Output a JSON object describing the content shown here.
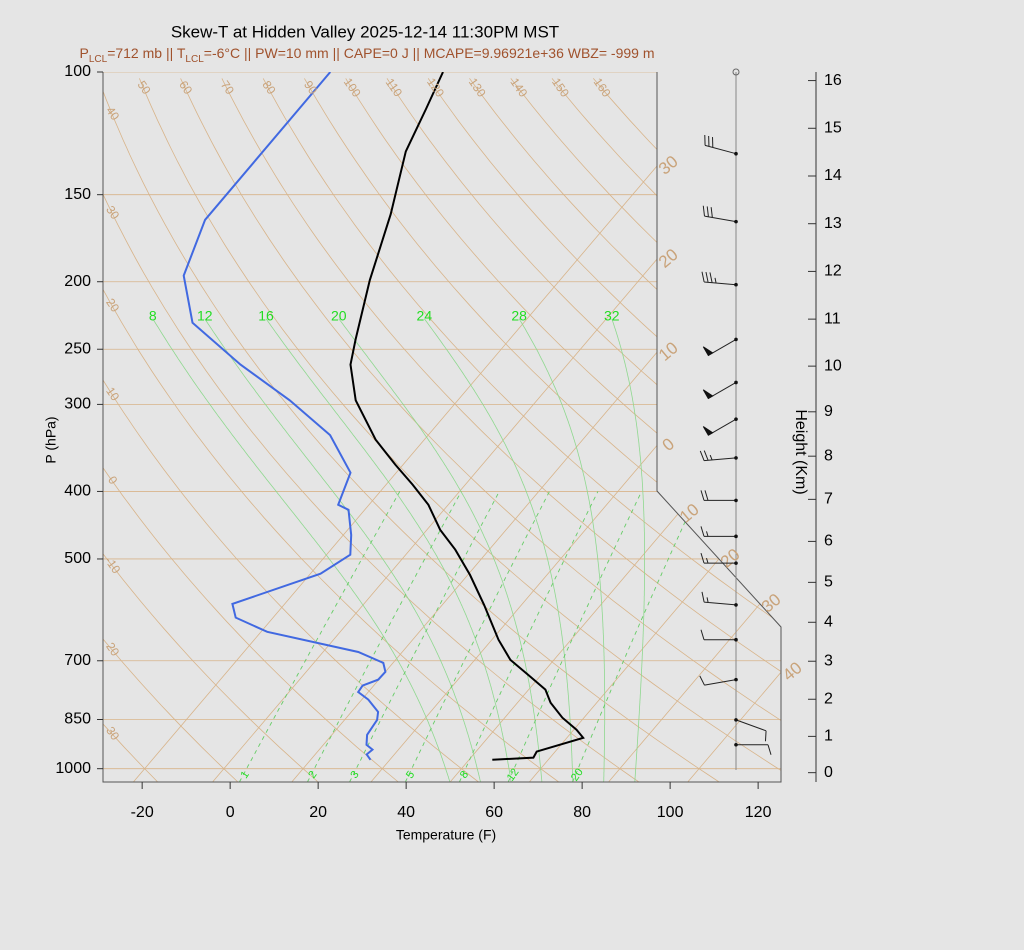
{
  "chart_data": {
    "type": "skewt",
    "title": "Skew-T at Hidden Valley 2025-12-14 11:30PM MST",
    "subtitle": [
      {
        "text": "P"
      },
      {
        "text": "LCL",
        "sub": true
      },
      {
        "text": "=712 mb || T"
      },
      {
        "text": "LCL",
        "sub": true
      },
      {
        "text": "=-6°C || PW=10 mm || CAPE=0 J || MCAPE=9.96921e+36 WBZ= -999 m"
      }
    ],
    "xlabel": "Temperature (F)",
    "ylabel": "P (hPa)",
    "y2label": "Height (Km)",
    "xlim": [
      -28.9,
      125.2
    ],
    "xticks": [
      -20,
      0,
      20,
      40,
      60,
      80,
      100,
      120
    ],
    "ylim": [
      1045,
      100
    ],
    "ylog": true,
    "yticks": [
      100,
      150,
      200,
      250,
      300,
      400,
      500,
      700,
      850,
      1000
    ],
    "y2ticks": [
      0,
      1,
      2,
      3,
      4,
      5,
      6,
      7,
      8,
      9,
      10,
      11,
      12,
      13,
      14,
      15,
      16
    ],
    "series": [
      {
        "color": "#000000",
        "pressure": [
          971,
          964,
          945,
          903,
          879,
          845,
          804,
          770,
          738,
          698,
          653,
          582,
          527,
          485,
          454,
          418,
          391,
          366,
          337,
          296,
          263,
          242,
          199,
          160,
          130,
          113,
          100
        ],
        "values": [
          55.3,
          64.2,
          63.8,
          71.7,
          68.6,
          63.1,
          57.5,
          53.8,
          47.9,
          40.1,
          33.5,
          23.5,
          14.5,
          6.3,
          -1.0,
          -8.5,
          -16.0,
          -23.8,
          -33.1,
          -45.2,
          -53.3,
          -57.0,
          -65.2,
          -73.2,
          -81.9,
          -85.5,
          -88.8
        ]
      },
      {
        "color": "#4169e1",
        "pressure": [
          971,
          954,
          939,
          924,
          894,
          851,
          829,
          796,
          776,
          760,
          745,
          726,
          705,
          680,
          636,
          607,
          580,
          525,
          493,
          462,
          425,
          418,
          376,
          332,
          296,
          263,
          229,
          196,
          163,
          100
        ],
        "values": [
          27.6,
          25.7,
          26.1,
          23.8,
          22.0,
          21.4,
          20.1,
          15.5,
          11.7,
          11.5,
          13.9,
          14.0,
          11.8,
          4.0,
          -20.6,
          -30.5,
          -33.9,
          -19.7,
          -16.6,
          -20.2,
          -25.7,
          -29.0,
          -32.4,
          -44.3,
          -60.2,
          -78.3,
          -97.3,
          -108.4,
          -114.3,
          -114.4
        ]
      }
    ],
    "isotherms": [
      {
        "value": -30,
        "label": "30"
      },
      {
        "value": -20,
        "label": "20"
      },
      {
        "value": -10,
        "label": "10"
      },
      0,
      10,
      20,
      30,
      40
    ],
    "dry_adiabats": [
      40,
      30,
      20,
      10,
      0,
      -10,
      {
        "value": -20,
        "label": "20"
      },
      {
        "value": -30,
        "label": "30"
      },
      50,
      60,
      70,
      80,
      90,
      100,
      110,
      120,
      130,
      140,
      150,
      160
    ],
    "moist_adiabats": [
      8,
      12,
      16,
      20,
      24,
      28,
      32
    ],
    "mixing_ratios": [
      1,
      2,
      3,
      5,
      8,
      12,
      20
    ],
    "winds": {
      "pressure": [
        131,
        164,
        202,
        242,
        279,
        315,
        358,
        412,
        464,
        507,
        582,
        653,
        745,
        851,
        924
      ],
      "direction": [
        285,
        280,
        275,
        240,
        240,
        240,
        265,
        270,
        270,
        270,
        275,
        270,
        260,
        110,
        90
      ],
      "speed": [
        30,
        30,
        35,
        50,
        50,
        50,
        25,
        20,
        15,
        15,
        15,
        10,
        10,
        10,
        10
      ]
    }
  }
}
